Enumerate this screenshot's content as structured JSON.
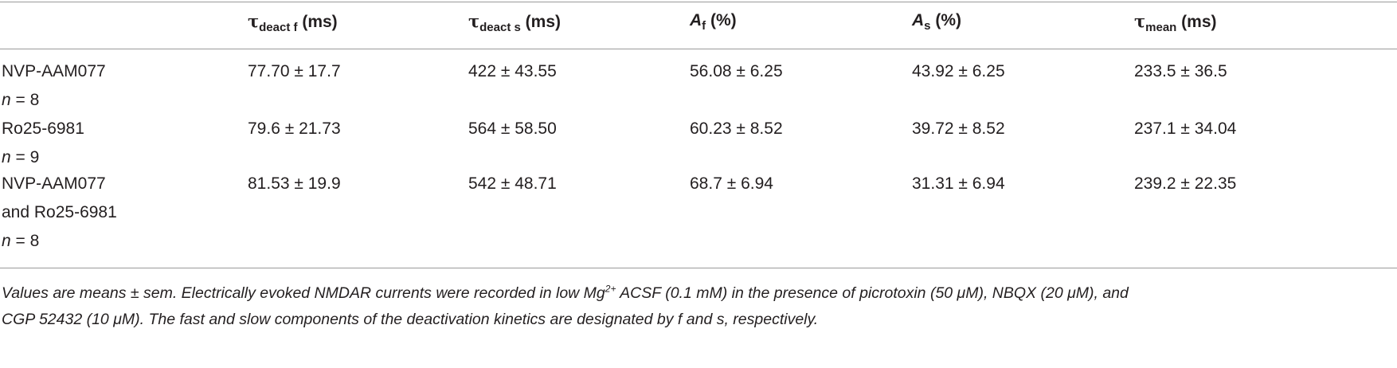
{
  "header": {
    "col1": {
      "symbol": "τ",
      "sub": "deact f",
      "unit": " (ms)"
    },
    "col2": {
      "symbol": "τ",
      "sub": "deact s",
      "unit": " (ms)"
    },
    "col3": {
      "symbol": "A",
      "sub": "f",
      "unit": " (%)"
    },
    "col4": {
      "symbol": "A",
      "sub": "s",
      "unit": " (%)"
    },
    "col5": {
      "symbol": "τ",
      "sub": "mean",
      "unit": " (ms)"
    }
  },
  "rows": [
    {
      "label_lines": [
        "NVP-AAM077"
      ],
      "n_prefix": "n",
      "n_value": " = 8",
      "values": [
        "77.70 ± 17.7",
        "422 ± 43.55",
        "56.08 ± 6.25",
        "43.92 ± 6.25",
        "233.5 ± 36.5"
      ]
    },
    {
      "label_lines": [
        "Ro25-6981"
      ],
      "n_prefix": "n",
      "n_value": " = 9",
      "values": [
        "79.6 ± 21.73",
        "564 ± 58.50",
        "60.23 ± 8.52",
        "39.72 ± 8.52",
        "237.1 ± 34.04"
      ]
    },
    {
      "label_lines": [
        "NVP-AAM077",
        "and Ro25-6981"
      ],
      "n_prefix": "n",
      "n_value": " = 8",
      "values": [
        "81.53 ± 19.9",
        "542 ± 48.71",
        "68.7 ± 6.94",
        "31.31 ± 6.94",
        "239.2 ± 22.35"
      ]
    }
  ],
  "footnote": {
    "part1": "Values are means ± sem. Electrically evoked NMDAR currents were recorded in low Mg",
    "sup": "2+",
    "part2": " ACSF (0.1 mM) in the presence of picrotoxin (50 μM), NBQX (20 μM), and",
    "line2": "CGP 52432 (10 μM). The fast and slow components of the deactivation kinetics are designated by f and s, respectively."
  }
}
